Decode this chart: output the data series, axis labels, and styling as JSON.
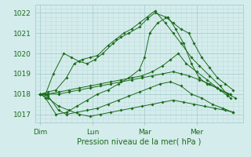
{
  "title": "",
  "xlabel": "Pression niveau de la mer( hPa )",
  "bg_color": "#d4ecec",
  "grid_major_color": "#aacccc",
  "grid_minor_color": "#c0dddd",
  "line_color": "#1a6b1a",
  "marker_color": "#1a6b1a",
  "tick_label_color": "#1a6b1a",
  "axis_label_color": "#1a6b1a",
  "ylim": [
    1016.6,
    1022.4
  ],
  "xlim": [
    0.0,
    4.0
  ],
  "yticks": [
    1017,
    1018,
    1019,
    1020,
    1021,
    1022
  ],
  "xtick_labels": [
    "Dim",
    "Lun",
    "Mar",
    "Mer"
  ],
  "xtick_positions": [
    0.1,
    1.1,
    2.1,
    3.1
  ],
  "series": [
    {
      "x": [
        0.1,
        0.2,
        0.35,
        0.55,
        0.7,
        0.85,
        1.0,
        1.15,
        1.3,
        1.5,
        1.65,
        1.8,
        2.0,
        2.15,
        2.3,
        2.5,
        2.65,
        2.8,
        2.95,
        3.05,
        3.2,
        3.35,
        3.5,
        3.65,
        3.8
      ],
      "y": [
        1018.0,
        1018.0,
        1019.0,
        1020.0,
        1019.8,
        1019.6,
        1019.5,
        1019.7,
        1020.0,
        1020.5,
        1020.8,
        1021.0,
        1021.3,
        1021.7,
        1022.0,
        1021.8,
        1021.5,
        1021.2,
        1021.0,
        1020.5,
        1019.8,
        1019.3,
        1018.8,
        1018.5,
        1018.2
      ]
    },
    {
      "x": [
        0.1,
        0.2,
        0.4,
        0.6,
        0.8,
        1.0,
        1.2,
        1.4,
        1.6,
        1.8,
        2.0,
        2.1,
        2.2,
        2.35,
        2.55,
        2.7,
        2.85,
        3.0,
        3.15,
        3.3,
        3.5,
        3.7,
        3.85
      ],
      "y": [
        1018.0,
        1017.8,
        1017.0,
        1017.1,
        1017.4,
        1017.7,
        1018.0,
        1018.2,
        1018.5,
        1018.8,
        1019.2,
        1019.8,
        1021.0,
        1021.5,
        1021.8,
        1021.2,
        1020.5,
        1019.5,
        1018.8,
        1018.5,
        1018.3,
        1018.0,
        1017.8
      ]
    },
    {
      "x": [
        0.1,
        0.25,
        0.4,
        0.6,
        0.75,
        0.9,
        1.05,
        1.2,
        1.4,
        1.55,
        1.7,
        1.85,
        2.0,
        2.15,
        2.3,
        2.5,
        2.65,
        2.8,
        3.0,
        3.15,
        3.35,
        3.55,
        3.75
      ],
      "y": [
        1018.0,
        1018.1,
        1018.2,
        1018.8,
        1019.5,
        1019.7,
        1019.8,
        1019.9,
        1020.4,
        1020.7,
        1021.0,
        1021.2,
        1021.5,
        1021.8,
        1022.1,
        1021.5,
        1021.0,
        1020.5,
        1019.8,
        1019.4,
        1018.9,
        1018.4,
        1017.8
      ]
    },
    {
      "x": [
        0.1,
        0.25,
        0.45,
        0.6,
        0.8,
        1.0,
        1.2,
        1.4,
        1.6,
        1.8,
        2.0,
        2.2,
        2.4,
        2.6,
        2.8,
        3.0,
        3.2,
        3.4,
        3.6,
        3.8
      ],
      "y": [
        1018.0,
        1017.9,
        1017.2,
        1017.0,
        1017.1,
        1017.2,
        1017.3,
        1017.5,
        1017.7,
        1017.9,
        1018.1,
        1018.3,
        1018.5,
        1018.6,
        1018.4,
        1018.0,
        1017.8,
        1017.5,
        1017.3,
        1017.1
      ]
    },
    {
      "x": [
        0.1,
        0.25,
        0.45,
        0.65,
        0.85,
        1.05,
        1.25,
        1.45,
        1.65,
        1.85,
        2.05,
        2.25,
        2.45,
        2.6,
        2.75,
        2.9,
        3.1,
        3.3,
        3.5,
        3.7
      ],
      "y": [
        1018.0,
        1018.0,
        1018.1,
        1018.2,
        1018.3,
        1018.4,
        1018.5,
        1018.6,
        1018.7,
        1018.8,
        1018.9,
        1019.1,
        1019.4,
        1019.7,
        1020.0,
        1019.5,
        1019.1,
        1018.7,
        1018.3,
        1017.9
      ]
    },
    {
      "x": [
        0.1,
        0.25,
        0.45,
        0.65,
        0.85,
        1.05,
        1.25,
        1.45,
        1.65,
        1.85,
        2.05,
        2.25,
        2.45,
        2.65,
        2.85,
        3.05,
        3.25,
        3.45,
        3.65,
        3.8
      ],
      "y": [
        1018.0,
        1017.8,
        1017.4,
        1017.2,
        1017.0,
        1016.9,
        1017.0,
        1017.1,
        1017.2,
        1017.3,
        1017.4,
        1017.5,
        1017.6,
        1017.7,
        1017.6,
        1017.5,
        1017.4,
        1017.3,
        1017.2,
        1017.1
      ]
    },
    {
      "x": [
        0.1,
        0.25,
        0.45,
        0.65,
        0.85,
        1.05,
        1.25,
        1.45,
        1.65,
        1.85,
        2.05,
        2.25,
        2.45,
        2.65,
        2.8,
        2.95,
        3.15,
        3.35,
        3.55,
        3.75
      ],
      "y": [
        1018.0,
        1018.0,
        1018.0,
        1018.1,
        1018.2,
        1018.3,
        1018.4,
        1018.5,
        1018.6,
        1018.7,
        1018.8,
        1018.9,
        1019.0,
        1019.1,
        1019.0,
        1018.9,
        1018.7,
        1018.5,
        1018.2,
        1018.0
      ]
    }
  ]
}
